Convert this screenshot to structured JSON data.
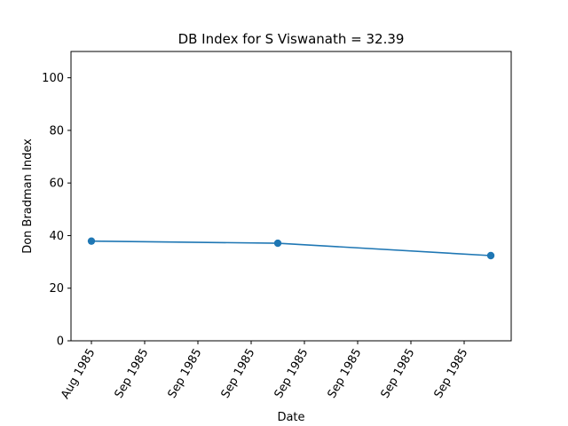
{
  "chart_data": {
    "type": "line",
    "title": "DB Index for S Viswanath = 32.39",
    "xlabel": "Date",
    "ylabel": "Don Bradman Index",
    "ylim": [
      0,
      110
    ],
    "yticks": [
      0,
      20,
      40,
      60,
      80,
      100
    ],
    "x_tick_labels": [
      "Aug 1985",
      "Sep 1985",
      "Sep 1985",
      "Sep 1985",
      "Sep 1985",
      "Sep 1985",
      "Sep 1985",
      "Sep 1985"
    ],
    "grid": false,
    "legend": "none",
    "series": [
      {
        "color": "#1f77b4",
        "points": [
          {
            "x": "Aug 1985",
            "y": 37.9
          },
          {
            "x": "Sep 1985",
            "y": 37.1
          },
          {
            "x": "Sep 1985",
            "y": 32.39
          }
        ]
      }
    ]
  }
}
